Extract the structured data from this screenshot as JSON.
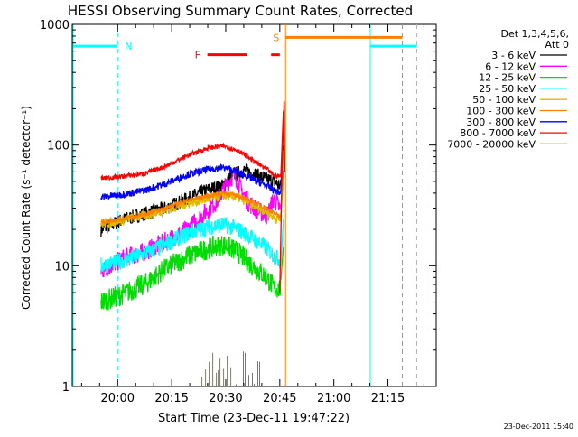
{
  "chart_data": {
    "type": "line",
    "title": "HESSI Observing Summary Count Rates, Corrected",
    "xlabel": "Start Time (23-Dec-11 19:47:22)",
    "ylabel": "Corrected Count Rate (s⁻¹ detector⁻¹)",
    "yscale": "log",
    "ylim": [
      1,
      1000
    ],
    "xlim_minutes_after_start": [
      0,
      101
    ],
    "x_ticks": [
      {
        "label": "20:00",
        "minutes": 12.6
      },
      {
        "label": "20:15",
        "minutes": 27.6
      },
      {
        "label": "20:30",
        "minutes": 42.6
      },
      {
        "label": "20:45",
        "minutes": 57.6
      },
      {
        "label": "21:00",
        "minutes": 72.6
      },
      {
        "label": "21:15",
        "minutes": 87.6
      }
    ],
    "y_ticks": [
      {
        "label": "1",
        "value": 1
      },
      {
        "label": "10",
        "value": 10
      },
      {
        "label": "100",
        "value": 100
      },
      {
        "label": "1000",
        "value": 1000
      }
    ],
    "legend": {
      "header": [
        "Det 1,3,4,5,6,",
        "Att 0"
      ],
      "placement": "right"
    },
    "series": [
      {
        "name": "3 - 6 keV",
        "color": "#000000",
        "points": [
          [
            8,
            20
          ],
          [
            14,
            24
          ],
          [
            20,
            27
          ],
          [
            26,
            30
          ],
          [
            32,
            36
          ],
          [
            38,
            43
          ],
          [
            42,
            46
          ],
          [
            44,
            55
          ],
          [
            48,
            62
          ],
          [
            52,
            55
          ],
          [
            56,
            50
          ],
          [
            58,
            45
          ]
        ]
      },
      {
        "name": "6 - 12 keV",
        "color": "#ff00ff",
        "points": [
          [
            8,
            9
          ],
          [
            14,
            11.5
          ],
          [
            20,
            13
          ],
          [
            26,
            16
          ],
          [
            32,
            20
          ],
          [
            36,
            26
          ],
          [
            40,
            34
          ],
          [
            43,
            48
          ],
          [
            45,
            58
          ],
          [
            47,
            42
          ],
          [
            49,
            33
          ],
          [
            52,
            28
          ],
          [
            54,
            26
          ],
          [
            56,
            36
          ],
          [
            58,
            28
          ]
        ]
      },
      {
        "name": "12 - 25 keV",
        "color": "#00dd00",
        "points": [
          [
            8,
            5
          ],
          [
            14,
            5.8
          ],
          [
            20,
            7
          ],
          [
            26,
            9.5
          ],
          [
            32,
            12
          ],
          [
            38,
            14
          ],
          [
            42,
            15
          ],
          [
            46,
            13
          ],
          [
            50,
            10
          ],
          [
            54,
            8
          ],
          [
            56,
            6.5
          ],
          [
            58,
            6.5
          ]
        ]
      },
      {
        "name": "25 - 50 keV",
        "color": "#00ffff",
        "points": [
          [
            8,
            10
          ],
          [
            14,
            11
          ],
          [
            20,
            12.5
          ],
          [
            26,
            15
          ],
          [
            32,
            18.5
          ],
          [
            38,
            21
          ],
          [
            42,
            22
          ],
          [
            46,
            20
          ],
          [
            50,
            17
          ],
          [
            54,
            14
          ],
          [
            56,
            12
          ],
          [
            58,
            11
          ]
        ]
      },
      {
        "name": "50 - 100 keV",
        "color": "#ddbb00",
        "points": [
          [
            8,
            22
          ],
          [
            14,
            24
          ],
          [
            20,
            26
          ],
          [
            26,
            29
          ],
          [
            32,
            33
          ],
          [
            38,
            36
          ],
          [
            42,
            38
          ],
          [
            46,
            37
          ],
          [
            50,
            32
          ],
          [
            54,
            28
          ],
          [
            56,
            25
          ],
          [
            58,
            24
          ]
        ]
      },
      {
        "name": "100 - 300 keV",
        "color": "#ff8000",
        "points": [
          [
            8,
            23
          ],
          [
            14,
            24.5
          ],
          [
            20,
            26.5
          ],
          [
            26,
            30
          ],
          [
            32,
            35
          ],
          [
            38,
            38
          ],
          [
            42,
            40
          ],
          [
            46,
            38
          ],
          [
            50,
            34
          ],
          [
            54,
            30
          ],
          [
            56,
            27
          ],
          [
            58,
            26
          ]
        ]
      },
      {
        "name": "300 - 800 keV",
        "color": "#0000ff",
        "points": [
          [
            8,
            37
          ],
          [
            14,
            39
          ],
          [
            20,
            42
          ],
          [
            26,
            48
          ],
          [
            32,
            57
          ],
          [
            38,
            63
          ],
          [
            42,
            65
          ],
          [
            46,
            60
          ],
          [
            50,
            52
          ],
          [
            54,
            46
          ],
          [
            56,
            42
          ],
          [
            58,
            40
          ]
        ]
      },
      {
        "name": "800 - 7000 keV",
        "color": "#ff0000",
        "points": [
          [
            8,
            53
          ],
          [
            14,
            55
          ],
          [
            20,
            58
          ],
          [
            26,
            67
          ],
          [
            32,
            82
          ],
          [
            38,
            95
          ],
          [
            42,
            98
          ],
          [
            46,
            90
          ],
          [
            50,
            75
          ],
          [
            54,
            63
          ],
          [
            56,
            56
          ],
          [
            58,
            55
          ]
        ]
      },
      {
        "name": "7000 - 20000 keV",
        "color": "#888800",
        "points": [
          [
            36,
            1.2
          ],
          [
            38,
            1.6
          ],
          [
            39,
            1.9
          ],
          [
            40,
            1.3
          ],
          [
            41,
            1.7
          ],
          [
            42,
            1.4
          ],
          [
            43,
            1.8
          ],
          [
            44,
            1.2
          ],
          [
            46,
            1.5
          ],
          [
            48,
            1.9
          ],
          [
            50,
            1.3
          ],
          [
            52,
            1.6
          ]
        ]
      }
    ],
    "annotations": [
      {
        "label": "N",
        "color": "#00ffff"
      },
      {
        "label": "F",
        "color": "#ff0000"
      },
      {
        "label": "S",
        "color": "#ff8000"
      }
    ],
    "night_intervals_minutes": [
      [
        -1,
        12.6
      ],
      [
        82.7,
        95.6
      ]
    ],
    "flare_bars_minutes": [
      [
        37.5,
        48.5
      ],
      [
        55.2,
        57.6
      ]
    ],
    "saa_interval_minutes": [
      59.2,
      91.6
    ],
    "timestamp": "23-Dec-2011 15:40"
  }
}
